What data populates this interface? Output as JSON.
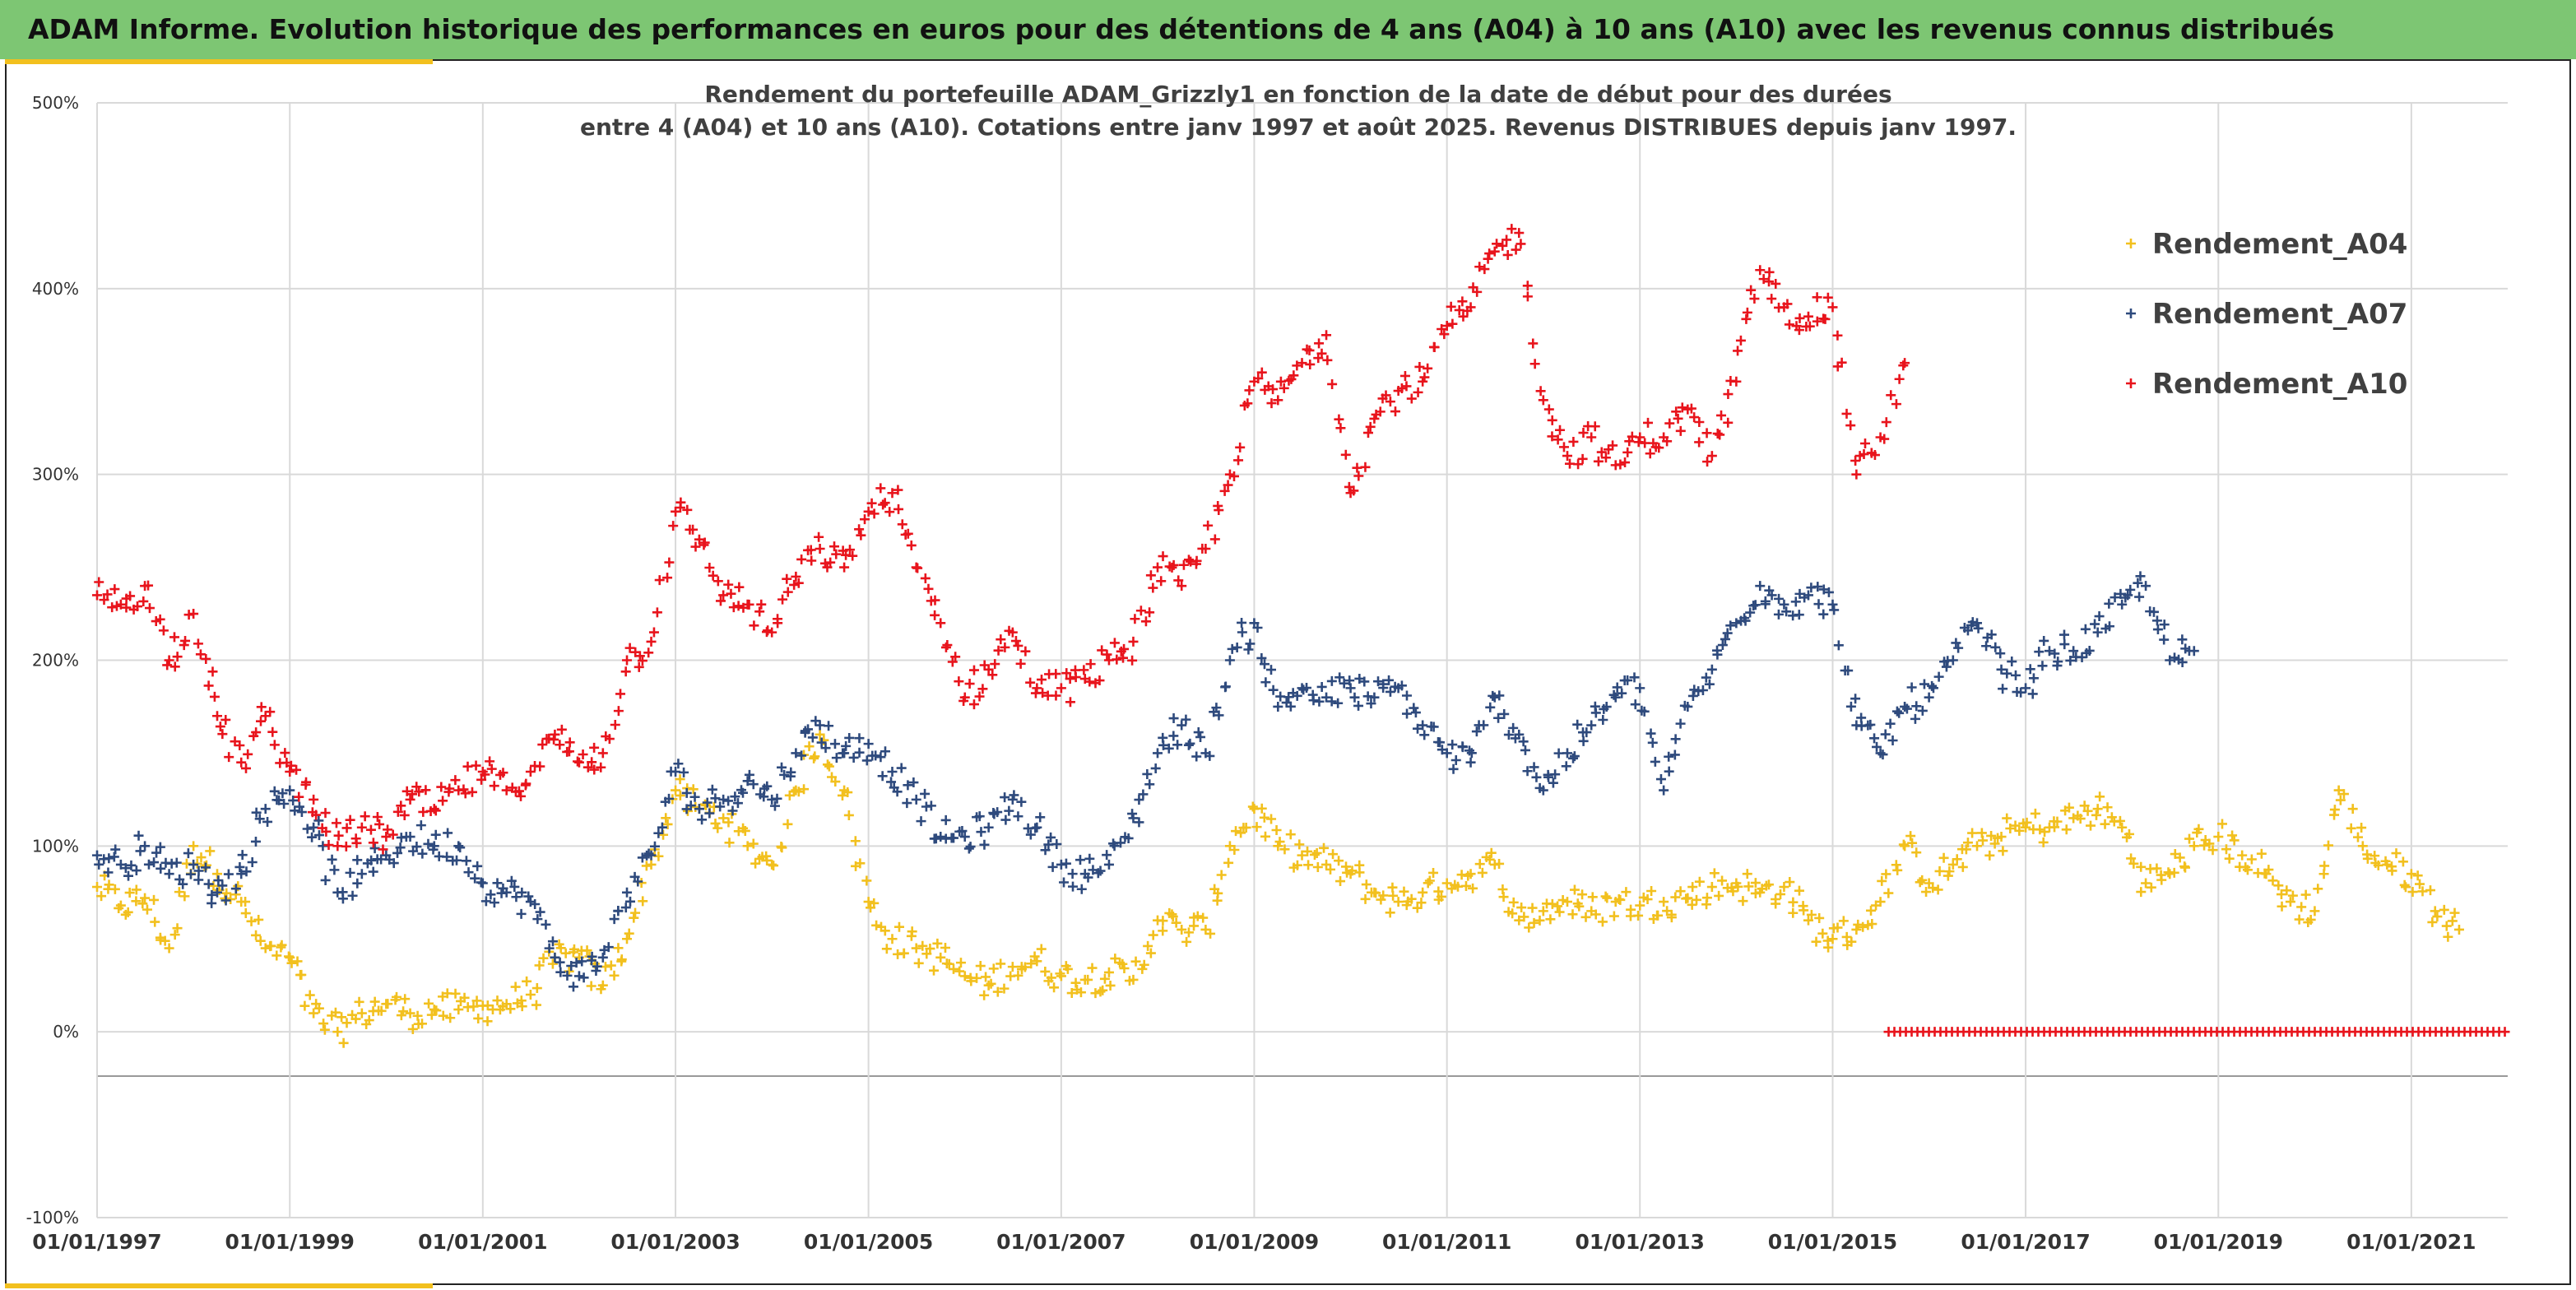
{
  "banner": {
    "title": "ADAM Informe. Evolution historique des performances en euros pour des détentions de 4 ans (A04) à 10 ans (A10) avec les revenus connus distribués"
  },
  "colors": {
    "banner_bg": "#7dc673",
    "accent": "#f2c01e",
    "A04": "#f2c01e",
    "A07": "#2e4a7d",
    "A10": "#e8141c"
  },
  "chart_data": {
    "type": "scatter",
    "marker": "+",
    "title_lines": [
      "Rendement du portefeuille ADAM_Grizzly1  en fonction de la date de début pour des durées",
      "entre 4 (A04) et 10 ans (A10). Cotations entre janv 1997 et août 2025. Revenus DISTRIBUES depuis janv 1997."
    ],
    "xlabel": "",
    "ylabel": "",
    "x_range": [
      "1997-01-01",
      "2022-01-01"
    ],
    "ylim": [
      -100,
      500
    ],
    "y_ticks": [
      -100,
      0,
      100,
      200,
      300,
      400,
      500
    ],
    "y_tick_labels": [
      "-100%",
      "0%",
      "100%",
      "200%",
      "300%",
      "400%",
      "500%"
    ],
    "x_ticks": [
      "1997-01-01",
      "1999-01-01",
      "2001-01-01",
      "2003-01-01",
      "2005-01-01",
      "2007-01-01",
      "2009-01-01",
      "2011-01-01",
      "2013-01-01",
      "2015-01-01",
      "2017-01-01",
      "2019-01-01",
      "2021-01-01"
    ],
    "x_tick_labels": [
      "01/01/1997",
      "01/01/1999",
      "01/01/2001",
      "01/01/2003",
      "01/01/2005",
      "01/01/2007",
      "01/01/2009",
      "01/01/2011",
      "01/01/2013",
      "01/01/2015",
      "01/01/2017",
      "01/01/2019",
      "01/01/2021"
    ],
    "grid": true,
    "legend_position": "top-right",
    "series": [
      {
        "name": "Rendement_A04",
        "color": "#f2c01e",
        "points": [
          [
            "1997-01-01",
            78
          ],
          [
            "1997-04-01",
            68
          ],
          [
            "1997-07-01",
            72
          ],
          [
            "1997-10-01",
            45
          ],
          [
            "1998-01-01",
            100
          ],
          [
            "1998-04-01",
            85
          ],
          [
            "1998-07-01",
            70
          ],
          [
            "1998-10-01",
            45
          ],
          [
            "1999-01-01",
            40
          ],
          [
            "1999-04-01",
            10
          ],
          [
            "1999-07-01",
            0
          ],
          [
            "1999-10-01",
            10
          ],
          [
            "2000-01-01",
            15
          ],
          [
            "2000-04-01",
            10
          ],
          [
            "2000-07-01",
            12
          ],
          [
            "2000-10-01",
            12
          ],
          [
            "2001-01-01",
            14
          ],
          [
            "2001-04-01",
            15
          ],
          [
            "2001-07-01",
            20
          ],
          [
            "2001-10-01",
            40
          ],
          [
            "2002-01-01",
            40
          ],
          [
            "2002-04-01",
            25
          ],
          [
            "2002-07-01",
            50
          ],
          [
            "2002-10-01",
            90
          ],
          [
            "2003-01-01",
            130
          ],
          [
            "2003-04-01",
            120
          ],
          [
            "2003-07-01",
            115
          ],
          [
            "2003-10-01",
            100
          ],
          [
            "2004-01-01",
            90
          ],
          [
            "2004-04-01",
            130
          ],
          [
            "2004-07-01",
            160
          ],
          [
            "2004-10-01",
            130
          ],
          [
            "2005-01-01",
            70
          ],
          [
            "2005-04-01",
            50
          ],
          [
            "2005-07-01",
            45
          ],
          [
            "2005-10-01",
            40
          ],
          [
            "2006-01-01",
            30
          ],
          [
            "2006-04-01",
            25
          ],
          [
            "2006-07-01",
            35
          ],
          [
            "2006-10-01",
            38
          ],
          [
            "2007-01-01",
            30
          ],
          [
            "2007-04-01",
            28
          ],
          [
            "2007-07-01",
            32
          ],
          [
            "2007-10-01",
            28
          ],
          [
            "2008-01-01",
            60
          ],
          [
            "2008-04-01",
            55
          ],
          [
            "2008-07-01",
            55
          ],
          [
            "2008-10-01",
            100
          ],
          [
            "2009-01-01",
            120
          ],
          [
            "2009-04-01",
            100
          ],
          [
            "2009-07-01",
            95
          ],
          [
            "2009-10-01",
            90
          ],
          [
            "2010-01-01",
            85
          ],
          [
            "2010-04-01",
            75
          ],
          [
            "2010-07-01",
            70
          ],
          [
            "2010-10-01",
            75
          ],
          [
            "2011-01-01",
            80
          ],
          [
            "2011-04-01",
            85
          ],
          [
            "2011-07-01",
            90
          ],
          [
            "2011-10-01",
            60
          ],
          [
            "2012-01-01",
            65
          ],
          [
            "2012-04-01",
            70
          ],
          [
            "2012-07-01",
            65
          ],
          [
            "2012-10-01",
            70
          ],
          [
            "2013-01-01",
            68
          ],
          [
            "2013-04-01",
            70
          ],
          [
            "2013-07-01",
            72
          ],
          [
            "2013-10-01",
            78
          ],
          [
            "2014-01-01",
            80
          ],
          [
            "2014-04-01",
            75
          ],
          [
            "2014-07-01",
            78
          ],
          [
            "2014-10-01",
            60
          ],
          [
            "2015-01-01",
            50
          ],
          [
            "2015-04-01",
            55
          ],
          [
            "2015-07-01",
            70
          ],
          [
            "2015-10-01",
            100
          ],
          [
            "2016-01-01",
            80
          ],
          [
            "2016-04-01",
            90
          ],
          [
            "2016-07-01",
            100
          ],
          [
            "2016-10-01",
            105
          ],
          [
            "2017-01-01",
            110
          ],
          [
            "2017-04-01",
            110
          ],
          [
            "2017-07-01",
            115
          ],
          [
            "2017-10-01",
            120
          ],
          [
            "2018-01-01",
            110
          ],
          [
            "2018-04-01",
            80
          ],
          [
            "2018-07-01",
            85
          ],
          [
            "2018-10-01",
            100
          ],
          [
            "2019-01-01",
            105
          ],
          [
            "2019-04-01",
            95
          ],
          [
            "2019-07-01",
            85
          ],
          [
            "2019-10-01",
            70
          ],
          [
            "2020-01-01",
            65
          ],
          [
            "2020-04-01",
            130
          ],
          [
            "2020-07-01",
            100
          ],
          [
            "2020-10-01",
            90
          ],
          [
            "2021-01-01",
            85
          ],
          [
            "2021-04-01",
            65
          ],
          [
            "2021-07-01",
            55
          ]
        ]
      },
      {
        "name": "Rendement_A07",
        "color": "#2e4a7d",
        "points": [
          [
            "1997-01-01",
            95
          ],
          [
            "1997-04-01",
            90
          ],
          [
            "1997-07-01",
            100
          ],
          [
            "1997-10-01",
            85
          ],
          [
            "1998-01-01",
            90
          ],
          [
            "1998-04-01",
            75
          ],
          [
            "1998-07-01",
            85
          ],
          [
            "1998-10-01",
            120
          ],
          [
            "1999-01-01",
            130
          ],
          [
            "1999-04-01",
            110
          ],
          [
            "1999-07-01",
            75
          ],
          [
            "1999-10-01",
            85
          ],
          [
            "2000-01-01",
            95
          ],
          [
            "2000-04-01",
            105
          ],
          [
            "2000-07-01",
            100
          ],
          [
            "2000-10-01",
            100
          ],
          [
            "2001-01-01",
            80
          ],
          [
            "2001-04-01",
            75
          ],
          [
            "2001-07-01",
            70
          ],
          [
            "2001-10-01",
            40
          ],
          [
            "2002-01-01",
            30
          ],
          [
            "2002-04-01",
            40
          ],
          [
            "2002-07-01",
            75
          ],
          [
            "2002-10-01",
            95
          ],
          [
            "2003-01-01",
            140
          ],
          [
            "2003-04-01",
            120
          ],
          [
            "2003-07-01",
            125
          ],
          [
            "2003-10-01",
            135
          ],
          [
            "2004-01-01",
            125
          ],
          [
            "2004-04-01",
            150
          ],
          [
            "2004-07-01",
            165
          ],
          [
            "2004-10-01",
            150
          ],
          [
            "2005-01-01",
            155
          ],
          [
            "2005-04-01",
            140
          ],
          [
            "2005-07-01",
            125
          ],
          [
            "2005-10-01",
            105
          ],
          [
            "2006-01-01",
            105
          ],
          [
            "2006-04-01",
            110
          ],
          [
            "2006-07-01",
            125
          ],
          [
            "2006-10-01",
            110
          ],
          [
            "2007-01-01",
            90
          ],
          [
            "2007-04-01",
            85
          ],
          [
            "2007-07-01",
            90
          ],
          [
            "2007-10-01",
            115
          ],
          [
            "2008-01-01",
            150
          ],
          [
            "2008-04-01",
            165
          ],
          [
            "2008-07-01",
            150
          ],
          [
            "2008-10-01",
            200
          ],
          [
            "2009-01-01",
            220
          ],
          [
            "2009-04-01",
            175
          ],
          [
            "2009-07-01",
            185
          ],
          [
            "2009-10-01",
            180
          ],
          [
            "2010-01-01",
            185
          ],
          [
            "2010-04-01",
            180
          ],
          [
            "2010-07-01",
            185
          ],
          [
            "2010-10-01",
            165
          ],
          [
            "2011-01-01",
            150
          ],
          [
            "2011-04-01",
            145
          ],
          [
            "2011-07-01",
            180
          ],
          [
            "2011-10-01",
            160
          ],
          [
            "2012-01-01",
            130
          ],
          [
            "2012-04-01",
            150
          ],
          [
            "2012-07-01",
            165
          ],
          [
            "2012-10-01",
            180
          ],
          [
            "2013-01-01",
            185
          ],
          [
            "2013-04-01",
            130
          ],
          [
            "2013-07-01",
            175
          ],
          [
            "2013-10-01",
            195
          ],
          [
            "2014-01-01",
            220
          ],
          [
            "2014-04-01",
            240
          ],
          [
            "2014-07-01",
            230
          ],
          [
            "2014-10-01",
            235
          ],
          [
            "2015-01-01",
            230
          ],
          [
            "2015-04-01",
            165
          ],
          [
            "2015-07-01",
            150
          ],
          [
            "2015-10-01",
            175
          ],
          [
            "2016-01-01",
            180
          ],
          [
            "2016-04-01",
            200
          ],
          [
            "2016-07-01",
            220
          ],
          [
            "2016-10-01",
            195
          ],
          [
            "2017-01-01",
            185
          ],
          [
            "2017-04-01",
            205
          ],
          [
            "2017-07-01",
            205
          ],
          [
            "2017-10-01",
            215
          ],
          [
            "2018-01-01",
            230
          ],
          [
            "2018-04-01",
            240
          ],
          [
            "2018-07-01",
            200
          ],
          [
            "2018-10-01",
            205
          ]
        ]
      },
      {
        "name": "Rendement_A10",
        "color": "#e8141c",
        "points": [
          [
            "1997-01-01",
            235
          ],
          [
            "1997-04-01",
            230
          ],
          [
            "1997-07-01",
            240
          ],
          [
            "1997-10-01",
            200
          ],
          [
            "1998-01-01",
            225
          ],
          [
            "1998-04-01",
            170
          ],
          [
            "1998-07-01",
            145
          ],
          [
            "1998-10-01",
            170
          ],
          [
            "1999-01-01",
            140
          ],
          [
            "1999-04-01",
            125
          ],
          [
            "1999-07-01",
            100
          ],
          [
            "1999-10-01",
            110
          ],
          [
            "2000-01-01",
            105
          ],
          [
            "2000-04-01",
            125
          ],
          [
            "2000-07-01",
            120
          ],
          [
            "2000-10-01",
            130
          ],
          [
            "2001-01-01",
            140
          ],
          [
            "2001-04-01",
            130
          ],
          [
            "2001-07-01",
            140
          ],
          [
            "2001-10-01",
            160
          ],
          [
            "2002-01-01",
            145
          ],
          [
            "2002-04-01",
            150
          ],
          [
            "2002-07-01",
            200
          ],
          [
            "2002-10-01",
            210
          ],
          [
            "2003-01-01",
            280
          ],
          [
            "2003-04-01",
            265
          ],
          [
            "2003-07-01",
            235
          ],
          [
            "2003-10-01",
            230
          ],
          [
            "2004-01-01",
            215
          ],
          [
            "2004-04-01",
            245
          ],
          [
            "2004-07-01",
            260
          ],
          [
            "2004-10-01",
            250
          ],
          [
            "2005-01-01",
            280
          ],
          [
            "2005-04-01",
            290
          ],
          [
            "2005-07-01",
            250
          ],
          [
            "2005-10-01",
            220
          ],
          [
            "2006-01-01",
            180
          ],
          [
            "2006-04-01",
            195
          ],
          [
            "2006-07-01",
            215
          ],
          [
            "2006-10-01",
            185
          ],
          [
            "2007-01-01",
            185
          ],
          [
            "2007-04-01",
            190
          ],
          [
            "2007-07-01",
            200
          ],
          [
            "2007-10-01",
            210
          ],
          [
            "2008-01-01",
            250
          ],
          [
            "2008-04-01",
            240
          ],
          [
            "2008-07-01",
            260
          ],
          [
            "2008-10-01",
            300
          ],
          [
            "2009-01-01",
            350
          ],
          [
            "2009-04-01",
            340
          ],
          [
            "2009-07-01",
            360
          ],
          [
            "2009-10-01",
            375
          ],
          [
            "2010-01-01",
            290
          ],
          [
            "2010-04-01",
            330
          ],
          [
            "2010-07-01",
            345
          ],
          [
            "2010-10-01",
            350
          ],
          [
            "2011-01-01",
            380
          ],
          [
            "2011-04-01",
            390
          ],
          [
            "2011-07-01",
            420
          ],
          [
            "2011-10-01",
            430
          ],
          [
            "2012-01-01",
            340
          ],
          [
            "2012-04-01",
            310
          ],
          [
            "2012-07-01",
            320
          ],
          [
            "2012-10-01",
            305
          ],
          [
            "2013-01-01",
            320
          ],
          [
            "2013-04-01",
            320
          ],
          [
            "2013-07-01",
            335
          ],
          [
            "2013-10-01",
            310
          ],
          [
            "2014-01-01",
            350
          ],
          [
            "2014-04-01",
            410
          ],
          [
            "2014-07-01",
            390
          ],
          [
            "2014-10-01",
            385
          ],
          [
            "2015-01-01",
            390
          ],
          [
            "2015-04-01",
            300
          ],
          [
            "2015-07-01",
            320
          ],
          [
            "2015-10-01",
            360
          ]
        ]
      }
    ],
    "zero_band": {
      "series": "Rendement_A10",
      "from": "2015-08-01",
      "to": "2022-01-01",
      "value": 0
    }
  }
}
